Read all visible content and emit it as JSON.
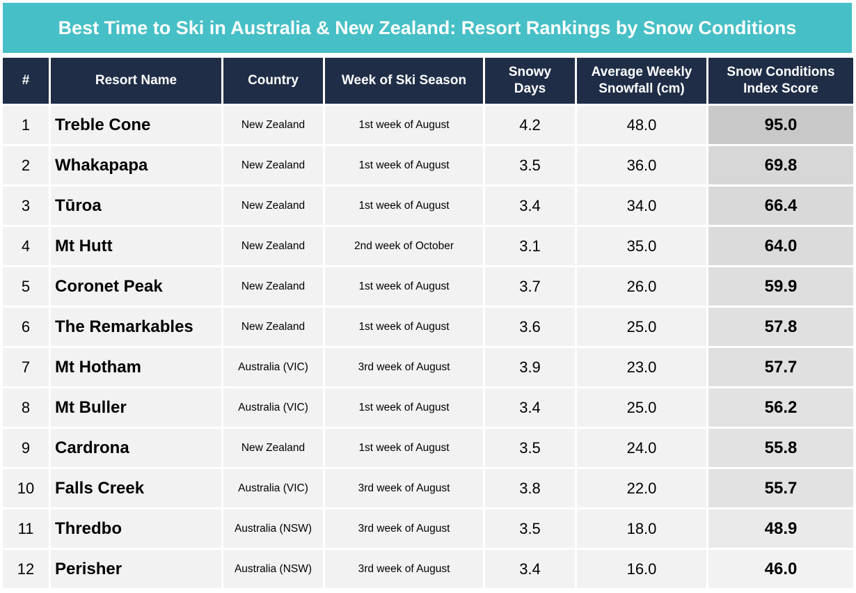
{
  "title": "Best Time to Ski in Australia & New Zealand: Resort Rankings by Snow Conditions",
  "chart_data": {
    "type": "table",
    "title": "Best Time to Ski in Australia & New Zealand: Resort Rankings by Snow Conditions",
    "columns": [
      "#",
      "Resort Name",
      "Country",
      "Week of Ski Season",
      "Snowy Days",
      "Average Weekly Snowfall (cm)",
      "Snow Conditions Index Score"
    ],
    "rows": [
      {
        "rank": "1",
        "resort": "Treble Cone",
        "country": "New Zealand",
        "week": "1st week of August",
        "snowy_days": "4.2",
        "snowfall": "48.0",
        "score": "95.0",
        "score_value": 95.0
      },
      {
        "rank": "2",
        "resort": "Whakapapa",
        "country": "New Zealand",
        "week": "1st week of August",
        "snowy_days": "3.5",
        "snowfall": "36.0",
        "score": "69.8",
        "score_value": 69.8
      },
      {
        "rank": "3",
        "resort": "Tūroa",
        "country": "New Zealand",
        "week": "1st week of August",
        "snowy_days": "3.4",
        "snowfall": "34.0",
        "score": "66.4",
        "score_value": 66.4
      },
      {
        "rank": "4",
        "resort": "Mt Hutt",
        "country": "New Zealand",
        "week": "2nd week of October",
        "snowy_days": "3.1",
        "snowfall": "35.0",
        "score": "64.0",
        "score_value": 64.0
      },
      {
        "rank": "5",
        "resort": "Coronet Peak",
        "country": "New Zealand",
        "week": "1st week of August",
        "snowy_days": "3.7",
        "snowfall": "26.0",
        "score": "59.9",
        "score_value": 59.9
      },
      {
        "rank": "6",
        "resort": "The Remarkables",
        "country": "New Zealand",
        "week": "1st week of August",
        "snowy_days": "3.6",
        "snowfall": "25.0",
        "score": "57.8",
        "score_value": 57.8
      },
      {
        "rank": "7",
        "resort": "Mt Hotham",
        "country": "Australia (VIC)",
        "week": "3rd week of August",
        "snowy_days": "3.9",
        "snowfall": "23.0",
        "score": "57.7",
        "score_value": 57.7
      },
      {
        "rank": "8",
        "resort": "Mt Buller",
        "country": "Australia (VIC)",
        "week": "1st week of August",
        "snowy_days": "3.4",
        "snowfall": "25.0",
        "score": "56.2",
        "score_value": 56.2
      },
      {
        "rank": "9",
        "resort": "Cardrona",
        "country": "New Zealand",
        "week": "1st week of August",
        "snowy_days": "3.5",
        "snowfall": "24.0",
        "score": "55.8",
        "score_value": 55.8
      },
      {
        "rank": "10",
        "resort": "Falls Creek",
        "country": "Australia (VIC)",
        "week": "3rd week of August",
        "snowy_days": "3.8",
        "snowfall": "22.0",
        "score": "55.7",
        "score_value": 55.7
      },
      {
        "rank": "11",
        "resort": "Thredbo",
        "country": "Australia (NSW)",
        "week": "3rd week of August",
        "snowy_days": "3.5",
        "snowfall": "18.0",
        "score": "48.9",
        "score_value": 48.9
      },
      {
        "rank": "12",
        "resort": "Perisher",
        "country": "Australia (NSW)",
        "week": "3rd week of August",
        "snowy_days": "3.4",
        "snowfall": "16.0",
        "score": "46.0",
        "score_value": 46.0
      }
    ]
  },
  "colors": {
    "title_bg": "#46bfc6",
    "header_bg": "#1f2d47",
    "row_bg": "#f2f2f2",
    "score_high": "#c8c8c8",
    "score_low": "#f2f2f2"
  }
}
